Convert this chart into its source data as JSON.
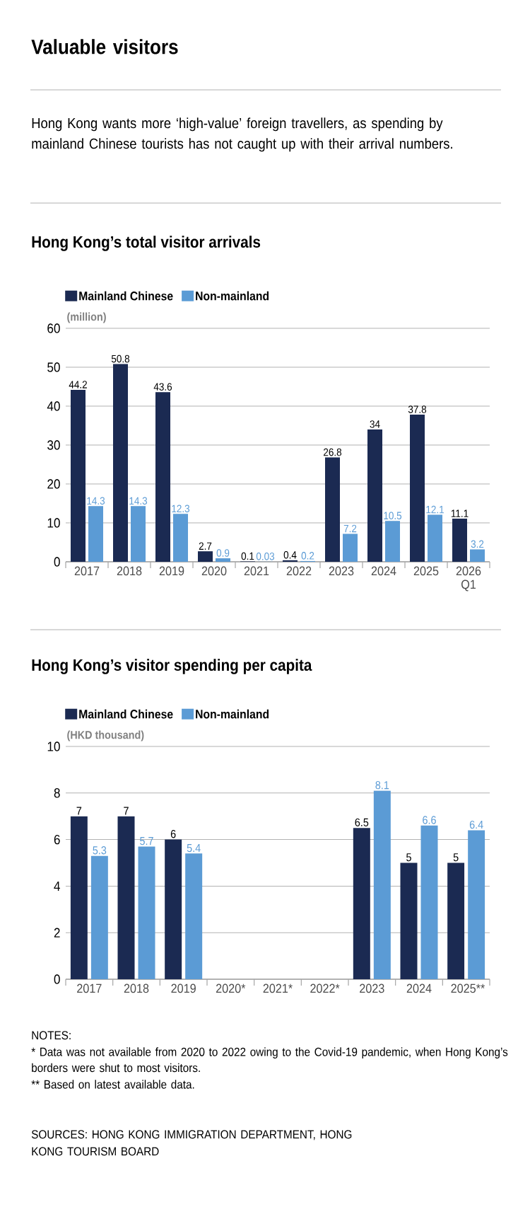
{
  "chart_data": [
    {
      "type": "bar",
      "title": "Hong Kong’s total visitor arrivals",
      "ylabel": "(million)",
      "categories": [
        "2017",
        "2018",
        "2019",
        "2020",
        "2021",
        "2022",
        "2023",
        "2024",
        "2025",
        "2026 Q1"
      ],
      "series": [
        {
          "name": "Mainland Chinese",
          "color": "#1b2a52",
          "values": [
            44.2,
            50.8,
            43.6,
            2.7,
            0.1,
            0.4,
            26.8,
            34,
            37.8,
            11.1
          ]
        },
        {
          "name": "Non-mainland",
          "color": "#5b9bd5",
          "values": [
            14.3,
            14.3,
            12.3,
            0.9,
            0.03,
            0.2,
            7.2,
            10.5,
            12.1,
            3.2
          ]
        }
      ],
      "ylim": [
        0,
        60
      ],
      "yticks": [
        0,
        10,
        20,
        30,
        40,
        50,
        60
      ],
      "grid": "y",
      "legend": "top left",
      "data_labels": true,
      "annotations": [
        "Valuable visitors",
        "Hong Kong wants more ‘high-value’ foreign travellers, as spending by mainland Chinese tourists has not caught up with their arrival numbers."
      ]
    },
    {
      "type": "bar",
      "title": "Hong Kong’s visitor spending per capita",
      "ylabel": "(HKD thousand)",
      "categories": [
        "2017",
        "2018",
        "2019",
        "2020*",
        "2021*",
        "2022*",
        "2023",
        "2024",
        "2025**"
      ],
      "series": [
        {
          "name": "Mainland Chinese",
          "color": "#1b2a52",
          "values": [
            7,
            7,
            6,
            null,
            null,
            null,
            6.5,
            5,
            5
          ]
        },
        {
          "name": "Non-mainland",
          "color": "#5b9bd5",
          "values": [
            5.3,
            5.7,
            5.4,
            null,
            null,
            null,
            8.1,
            6.6,
            6.4
          ]
        }
      ],
      "ylim": [
        0,
        10
      ],
      "yticks": [
        0,
        2,
        4,
        6,
        8,
        10
      ],
      "grid": "y",
      "legend": "top left",
      "data_labels": true,
      "annotations": [
        "NOTES:",
        "* Data was not available from 2020 to 2022 owing to the Covid-19 pandemic, when Hong Kong’s borders were shut to most visitors.",
        "** Based on latest available data.",
        "SOURCES: HONG KONG IMMIGRATION DEPARTMENT, HONG KONG TOURISM BOARD"
      ]
    }
  ]
}
